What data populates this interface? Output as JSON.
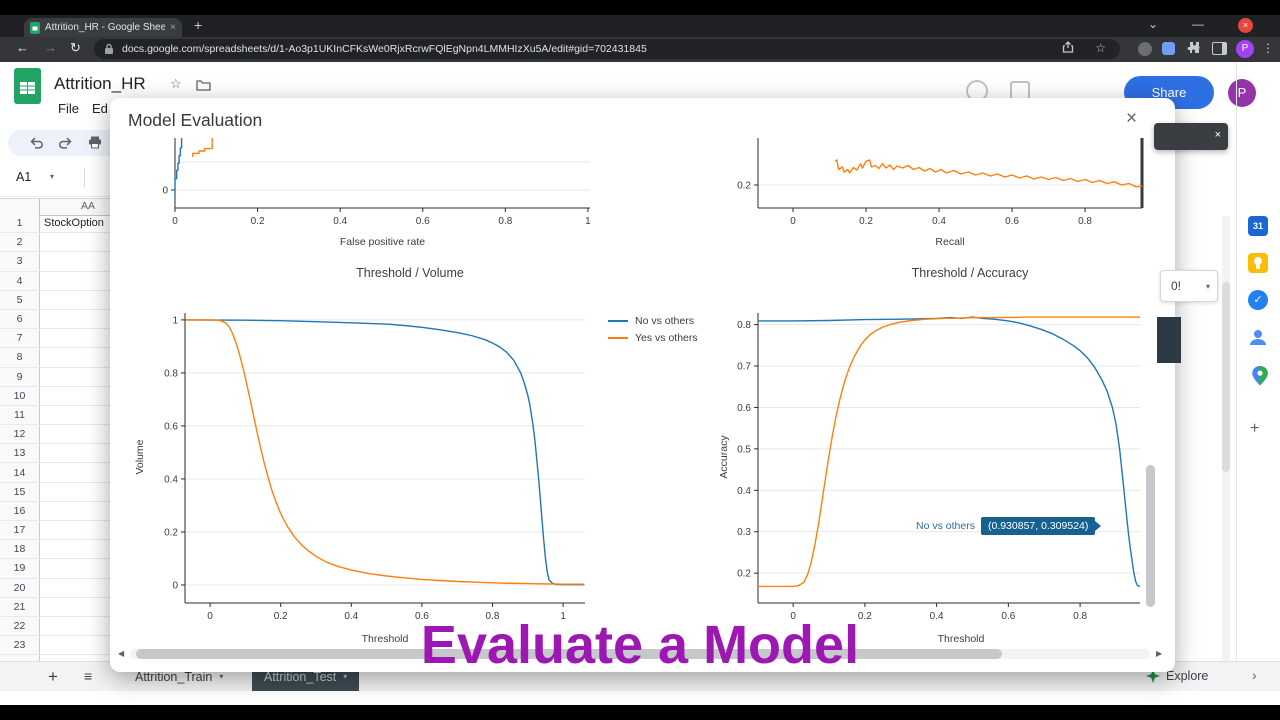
{
  "browser": {
    "tab_title": "Attrition_HR - Google Sheets",
    "url": "docs.google.com/spreadsheets/d/1-Ao3p1UKInCFKsWe0RjxRcrwFQlEgNpn4LMMHIzXu5A/edit#gid=702431845",
    "new_tab_label": "+",
    "profile_initial": "P"
  },
  "sheets": {
    "doc_title": "Attrition_HR",
    "menu_items": [
      "File",
      "Ed"
    ],
    "name_box_value": "A1",
    "column_header": "AA",
    "first_cell_value": "StockOption",
    "row_numbers": [
      "1",
      "2",
      "3",
      "4",
      "5",
      "6",
      "7",
      "8",
      "9",
      "10",
      "11",
      "12",
      "13",
      "14",
      "15",
      "16",
      "17",
      "18",
      "19",
      "20",
      "21",
      "22",
      "23",
      ""
    ],
    "share_label": "Share",
    "zoom_fragment": "0!",
    "calendar_label": "31",
    "bottom": {
      "tab_train": "Attrition_Train",
      "tab_test": "Attrition_Test",
      "explore_label": "Explore"
    }
  },
  "modal": {
    "title": "Model Evaluation",
    "tooltip_series": "No vs others",
    "tooltip_value": "(0.930857, 0.309524)"
  },
  "caption": "Evaluate a Model",
  "colors": {
    "series_blue": "#1f77b4",
    "series_orange": "#ff7f0e",
    "caption_purple": "#9d17b3"
  },
  "chart_data": {
    "roc": {
      "type": "line",
      "xlabel": "False positive rate",
      "xlim": [
        0,
        1.005
      ],
      "ylim": [
        -0.129,
        0.371
      ],
      "xticks": [
        0,
        0.2,
        0.4,
        0.6,
        0.8,
        1
      ],
      "yticks": [
        0
      ],
      "ygrid": [
        0,
        0.2
      ],
      "series": [
        {
          "name": "No vs others",
          "color": "#1f77b4",
          "points": [
            [
              0,
              -0.05
            ],
            [
              0,
              0.08
            ],
            [
              0.004,
              0.08
            ],
            [
              0.004,
              0.14
            ],
            [
              0.007,
              0.14
            ],
            [
              0.007,
              0.19
            ],
            [
              0.01,
              0.19
            ],
            [
              0.01,
              0.245
            ],
            [
              0.013,
              0.245
            ],
            [
              0.013,
              0.3
            ],
            [
              0.016,
              0.3
            ],
            [
              0.016,
              0.55
            ]
          ]
        },
        {
          "name": "Yes vs others",
          "color": "#ff7f0e",
          "points": [
            [
              0.043,
              0.235
            ],
            [
              0.043,
              0.262
            ],
            [
              0.058,
              0.262
            ],
            [
              0.058,
              0.278
            ],
            [
              0.072,
              0.278
            ],
            [
              0.072,
              0.295
            ],
            [
              0.09,
              0.295
            ],
            [
              0.09,
              0.55
            ]
          ]
        }
      ]
    },
    "precision_recall": {
      "type": "line",
      "xlabel": "Recall",
      "xlim": [
        -0.096,
        0.956
      ],
      "ylim": [
        0.108,
        0.388
      ],
      "xticks": [
        0,
        0.2,
        0.4,
        0.6,
        0.8
      ],
      "yticks": [
        0.2
      ],
      "ygrid": [
        0.2
      ],
      "right_spine": true,
      "series": [
        {
          "name": "Yes vs others",
          "color": "#ff7f0e",
          "points": [
            [
              0.115,
              0.295
            ],
            [
              0.12,
              0.3
            ],
            [
              0.125,
              0.262
            ],
            [
              0.135,
              0.272
            ],
            [
              0.14,
              0.252
            ],
            [
              0.15,
              0.262
            ],
            [
              0.155,
              0.248
            ],
            [
              0.165,
              0.27
            ],
            [
              0.175,
              0.26
            ],
            [
              0.185,
              0.285
            ],
            [
              0.19,
              0.268
            ],
            [
              0.2,
              0.295
            ],
            [
              0.21,
              0.3
            ],
            [
              0.215,
              0.272
            ],
            [
              0.225,
              0.278
            ],
            [
              0.235,
              0.266
            ],
            [
              0.245,
              0.285
            ],
            [
              0.255,
              0.268
            ],
            [
              0.265,
              0.28
            ],
            [
              0.275,
              0.262
            ],
            [
              0.285,
              0.276
            ],
            [
              0.3,
              0.268
            ],
            [
              0.315,
              0.278
            ],
            [
              0.33,
              0.262
            ],
            [
              0.345,
              0.27
            ],
            [
              0.36,
              0.256
            ],
            [
              0.375,
              0.266
            ],
            [
              0.39,
              0.252
            ],
            [
              0.405,
              0.262
            ],
            [
              0.42,
              0.248
            ],
            [
              0.44,
              0.258
            ],
            [
              0.46,
              0.244
            ],
            [
              0.48,
              0.252
            ],
            [
              0.5,
              0.24
            ],
            [
              0.52,
              0.248
            ],
            [
              0.54,
              0.236
            ],
            [
              0.56,
              0.244
            ],
            [
              0.58,
              0.232
            ],
            [
              0.6,
              0.24
            ],
            [
              0.62,
              0.228
            ],
            [
              0.64,
              0.236
            ],
            [
              0.66,
              0.224
            ],
            [
              0.68,
              0.232
            ],
            [
              0.7,
              0.222
            ],
            [
              0.72,
              0.23
            ],
            [
              0.74,
              0.218
            ],
            [
              0.76,
              0.226
            ],
            [
              0.78,
              0.214
            ],
            [
              0.8,
              0.222
            ],
            [
              0.82,
              0.21
            ],
            [
              0.84,
              0.218
            ],
            [
              0.86,
              0.206
            ],
            [
              0.88,
              0.213
            ],
            [
              0.9,
              0.2
            ],
            [
              0.92,
              0.206
            ],
            [
              0.94,
              0.193
            ],
            [
              0.956,
              0.196
            ]
          ]
        }
      ]
    },
    "threshold_volume": {
      "type": "line",
      "title": "Threshold / Volume",
      "xlabel": "Threshold",
      "ylabel": "Volume",
      "xlim": [
        -0.071,
        1.062
      ],
      "ylim": [
        -0.068,
        1.026
      ],
      "xticks": [
        0,
        0.2,
        0.4,
        0.6,
        0.8,
        1
      ],
      "yticks": [
        0,
        0.2,
        0.4,
        0.6,
        0.8,
        1
      ],
      "legend": [
        {
          "name": "No vs others",
          "color": "#1f77b4"
        },
        {
          "name": "Yes vs others",
          "color": "#ff7f0e"
        }
      ],
      "series": [
        {
          "name": "No vs others",
          "color": "#1f77b4",
          "points": [
            [
              -0.07,
              1
            ],
            [
              0.1,
              0.999
            ],
            [
              0.2,
              0.997
            ],
            [
              0.3,
              0.993
            ],
            [
              0.4,
              0.989
            ],
            [
              0.5,
              0.984
            ],
            [
              0.55,
              0.979
            ],
            [
              0.6,
              0.972
            ],
            [
              0.65,
              0.963
            ],
            [
              0.7,
              0.952
            ],
            [
              0.74,
              0.941
            ],
            [
              0.78,
              0.925
            ],
            [
              0.8,
              0.913
            ],
            [
              0.82,
              0.898
            ],
            [
              0.84,
              0.878
            ],
            [
              0.86,
              0.848
            ],
            [
              0.88,
              0.8
            ],
            [
              0.89,
              0.762
            ],
            [
              0.9,
              0.715
            ],
            [
              0.905,
              0.685
            ],
            [
              0.91,
              0.645
            ],
            [
              0.915,
              0.6
            ],
            [
              0.92,
              0.545
            ],
            [
              0.925,
              0.48
            ],
            [
              0.93,
              0.41
            ],
            [
              0.935,
              0.33
            ],
            [
              0.94,
              0.25
            ],
            [
              0.945,
              0.17
            ],
            [
              0.95,
              0.1
            ],
            [
              0.955,
              0.05
            ],
            [
              0.96,
              0.02
            ],
            [
              0.97,
              0.006
            ],
            [
              0.98,
              0.002
            ],
            [
              1.0,
              0.001
            ],
            [
              1.06,
              0.001
            ]
          ]
        },
        {
          "name": "Yes vs others",
          "color": "#ff7f0e",
          "points": [
            [
              -0.07,
              1
            ],
            [
              0.01,
              1
            ],
            [
              0.03,
              0.997
            ],
            [
              0.045,
              0.988
            ],
            [
              0.055,
              0.972
            ],
            [
              0.065,
              0.945
            ],
            [
              0.075,
              0.908
            ],
            [
              0.085,
              0.862
            ],
            [
              0.095,
              0.81
            ],
            [
              0.105,
              0.752
            ],
            [
              0.115,
              0.69
            ],
            [
              0.125,
              0.627
            ],
            [
              0.135,
              0.565
            ],
            [
              0.145,
              0.506
            ],
            [
              0.155,
              0.452
            ],
            [
              0.165,
              0.403
            ],
            [
              0.175,
              0.358
            ],
            [
              0.185,
              0.319
            ],
            [
              0.195,
              0.285
            ],
            [
              0.205,
              0.256
            ],
            [
              0.22,
              0.219
            ],
            [
              0.24,
              0.18
            ],
            [
              0.26,
              0.15
            ],
            [
              0.28,
              0.127
            ],
            [
              0.3,
              0.108
            ],
            [
              0.33,
              0.086
            ],
            [
              0.36,
              0.071
            ],
            [
              0.4,
              0.056
            ],
            [
              0.45,
              0.043
            ],
            [
              0.5,
              0.034
            ],
            [
              0.55,
              0.027
            ],
            [
              0.6,
              0.021
            ],
            [
              0.65,
              0.017
            ],
            [
              0.7,
              0.013
            ],
            [
              0.76,
              0.01
            ],
            [
              0.82,
              0.007
            ],
            [
              0.9,
              0.005
            ],
            [
              1.0,
              0.003
            ],
            [
              1.06,
              0.003
            ]
          ]
        }
      ]
    },
    "threshold_accuracy": {
      "type": "line",
      "title": "Threshold / Accuracy",
      "xlabel": "Threshold",
      "ylabel": "Accuracy",
      "xlim": [
        -0.098,
        0.967
      ],
      "ylim": [
        0.128,
        0.828
      ],
      "xticks": [
        0,
        0.2,
        0.4,
        0.6,
        0.8
      ],
      "yticks": [
        0.2,
        0.3,
        0.4,
        0.5,
        0.6,
        0.7,
        0.8
      ],
      "series": [
        {
          "name": "No vs others",
          "color": "#1f77b4",
          "points": [
            [
              -0.098,
              0.809
            ],
            [
              0.0,
              0.809
            ],
            [
              0.1,
              0.81
            ],
            [
              0.2,
              0.812
            ],
            [
              0.3,
              0.813
            ],
            [
              0.35,
              0.814
            ],
            [
              0.4,
              0.815
            ],
            [
              0.44,
              0.817
            ],
            [
              0.47,
              0.815
            ],
            [
              0.5,
              0.818
            ],
            [
              0.53,
              0.815
            ],
            [
              0.56,
              0.813
            ],
            [
              0.6,
              0.809
            ],
            [
              0.63,
              0.804
            ],
            [
              0.66,
              0.797
            ],
            [
              0.69,
              0.789
            ],
            [
              0.72,
              0.779
            ],
            [
              0.75,
              0.766
            ],
            [
              0.78,
              0.75
            ],
            [
              0.8,
              0.737
            ],
            [
              0.82,
              0.72
            ],
            [
              0.84,
              0.698
            ],
            [
              0.86,
              0.668
            ],
            [
              0.875,
              0.64
            ],
            [
              0.89,
              0.6
            ],
            [
              0.9,
              0.56
            ],
            [
              0.91,
              0.5
            ],
            [
              0.92,
              0.42
            ],
            [
              0.93,
              0.335
            ],
            [
              0.935,
              0.295
            ],
            [
              0.94,
              0.26
            ],
            [
              0.945,
              0.23
            ],
            [
              0.95,
              0.2
            ],
            [
              0.955,
              0.18
            ],
            [
              0.96,
              0.17
            ],
            [
              0.967,
              0.168
            ]
          ]
        },
        {
          "name": "Yes vs others",
          "color": "#ff7f0e",
          "points": [
            [
              -0.098,
              0.168
            ],
            [
              0.0,
              0.168
            ],
            [
              0.015,
              0.17
            ],
            [
              0.03,
              0.178
            ],
            [
              0.04,
              0.196
            ],
            [
              0.05,
              0.225
            ],
            [
              0.06,
              0.266
            ],
            [
              0.07,
              0.315
            ],
            [
              0.08,
              0.37
            ],
            [
              0.09,
              0.428
            ],
            [
              0.1,
              0.484
            ],
            [
              0.11,
              0.535
            ],
            [
              0.12,
              0.58
            ],
            [
              0.13,
              0.619
            ],
            [
              0.14,
              0.652
            ],
            [
              0.15,
              0.68
            ],
            [
              0.16,
              0.703
            ],
            [
              0.17,
              0.722
            ],
            [
              0.18,
              0.738
            ],
            [
              0.19,
              0.752
            ],
            [
              0.2,
              0.763
            ],
            [
              0.215,
              0.776
            ],
            [
              0.23,
              0.785
            ],
            [
              0.25,
              0.794
            ],
            [
              0.27,
              0.8
            ],
            [
              0.3,
              0.806
            ],
            [
              0.33,
              0.81
            ],
            [
              0.37,
              0.813
            ],
            [
              0.42,
              0.815
            ],
            [
              0.47,
              0.816
            ],
            [
              0.52,
              0.817
            ],
            [
              0.58,
              0.817
            ],
            [
              0.65,
              0.818
            ],
            [
              0.75,
              0.818
            ],
            [
              0.85,
              0.818
            ],
            [
              0.967,
              0.818
            ]
          ]
        }
      ]
    }
  }
}
